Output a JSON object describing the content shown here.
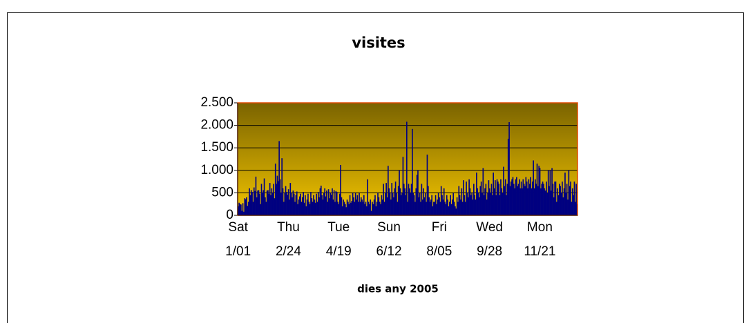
{
  "chart_data": {
    "type": "bar",
    "title": "visites",
    "x_label": "dies any 2005",
    "categories": [
      "Sat 1/01",
      null,
      null,
      null,
      null,
      null,
      null,
      null,
      null,
      null,
      null,
      null,
      null,
      null,
      null,
      null,
      null,
      null,
      null,
      null,
      null,
      null,
      null,
      null,
      null,
      null,
      null,
      null,
      null,
      null,
      null,
      null,
      null,
      null,
      null,
      null,
      null,
      null,
      null,
      null,
      null,
      null,
      null,
      null,
      null,
      null,
      null,
      null,
      null,
      null,
      null,
      null,
      null,
      null,
      "Thu 2/24",
      null,
      null,
      null,
      null,
      null,
      null,
      null,
      null,
      null,
      null,
      null,
      null,
      null,
      null,
      null,
      null,
      null,
      null,
      null,
      null,
      null,
      null,
      null,
      null,
      null,
      null,
      null,
      null,
      null,
      null,
      null,
      null,
      null,
      null,
      null,
      null,
      null,
      null,
      null,
      null,
      null,
      null,
      null,
      null,
      null,
      null,
      null,
      null,
      null,
      null,
      null,
      null,
      null,
      "Tue 4/19",
      null,
      null,
      null,
      null,
      null,
      null,
      null,
      null,
      null,
      null,
      null,
      null,
      null,
      null,
      null,
      null,
      null,
      null,
      null,
      null,
      null,
      null,
      null,
      null,
      null,
      null,
      null,
      null,
      null,
      null,
      null,
      null,
      null,
      null,
      null,
      null,
      null,
      null,
      null,
      null,
      null,
      null,
      null,
      null,
      null,
      null,
      null,
      null,
      null,
      null,
      null,
      null,
      null,
      "Sun 6/12",
      null,
      null,
      null,
      null,
      null,
      null,
      null,
      null,
      null,
      null,
      null,
      null,
      null,
      null,
      null,
      null,
      null,
      null,
      null,
      null,
      null,
      null,
      null,
      null,
      null,
      null,
      null,
      null,
      null,
      null,
      null,
      null,
      null,
      null,
      null,
      null,
      null,
      null,
      null,
      null,
      null,
      null,
      null,
      null,
      null,
      null,
      null,
      null,
      null,
      null,
      null,
      null,
      null,
      "Fri 8/05",
      null,
      null,
      null,
      null,
      null,
      null,
      null,
      null,
      null,
      null,
      null,
      null,
      null,
      null,
      null,
      null,
      null,
      null,
      null,
      null,
      null,
      null,
      null,
      null,
      null,
      null,
      null,
      null,
      null,
      null,
      null,
      null,
      null,
      null,
      null,
      null,
      null,
      null,
      null,
      null,
      null,
      null,
      null,
      null,
      null,
      null,
      null,
      null,
      null,
      null,
      null,
      null,
      null,
      "Wed 9/28",
      null,
      null,
      null,
      null,
      null,
      null,
      null,
      null,
      null,
      null,
      null,
      null,
      null,
      null,
      null,
      null,
      null,
      null,
      null,
      null,
      null,
      null,
      null,
      null,
      null,
      null,
      null,
      null,
      null,
      null,
      null,
      null,
      null,
      null,
      null,
      null,
      null,
      null,
      null,
      null,
      null,
      null,
      null,
      null,
      null,
      null,
      null,
      null,
      null,
      null,
      null,
      null,
      null,
      "Mon 11/21",
      null,
      null,
      null,
      null,
      null,
      null,
      null,
      null,
      null,
      null,
      null,
      null,
      null,
      null,
      null,
      null,
      null,
      null,
      null,
      null,
      null,
      null,
      null,
      null,
      null,
      null,
      null,
      null,
      null,
      null,
      null,
      null,
      null,
      null,
      null,
      null,
      null,
      null,
      null,
      null
    ],
    "values": [
      200,
      280,
      250,
      240,
      100,
      270,
      80,
      380,
      360,
      400,
      210,
      300,
      600,
      450,
      560,
      520,
      300,
      620,
      540,
      860,
      400,
      550,
      560,
      480,
      250,
      700,
      500,
      560,
      820,
      400,
      300,
      550,
      560,
      480,
      720,
      450,
      600,
      500,
      700,
      380,
      1150,
      700,
      880,
      760,
      1650,
      800,
      500,
      1270,
      600,
      300,
      500,
      650,
      520,
      460,
      580,
      350,
      720,
      500,
      400,
      550,
      480,
      300,
      450,
      530,
      250,
      350,
      420,
      480,
      300,
      400,
      520,
      280,
      450,
      200,
      350,
      480,
      300,
      250,
      520,
      380,
      300,
      450,
      350,
      280,
      480,
      300,
      520,
      400,
      600,
      660,
      450,
      350,
      500,
      600,
      420,
      550,
      300,
      580,
      380,
      500,
      460,
      600,
      350,
      560,
      300,
      540,
      520,
      300,
      250,
      480,
      1120,
      400,
      200,
      350,
      300,
      250,
      180,
      350,
      300,
      250,
      450,
      280,
      320,
      500,
      400,
      300,
      500,
      350,
      450,
      300,
      500,
      300,
      400,
      350,
      300,
      450,
      250,
      300,
      200,
      800,
      300,
      250,
      350,
      100,
      300,
      250,
      350,
      450,
      200,
      300,
      500,
      400,
      300,
      250,
      450,
      350,
      700,
      300,
      500,
      720,
      400,
      1100,
      600,
      500,
      350,
      720,
      500,
      400,
      600,
      750,
      500,
      300,
      650,
      1000,
      600,
      450,
      500,
      1300,
      700,
      600,
      450,
      2080,
      300,
      700,
      600,
      500,
      700,
      1920,
      500,
      450,
      300,
      600,
      900,
      1000,
      400,
      500,
      300,
      700,
      350,
      600,
      400,
      500,
      300,
      1350,
      650,
      400,
      300,
      350,
      450,
      200,
      300,
      300,
      450,
      250,
      350,
      500,
      400,
      300,
      650,
      450,
      350,
      600,
      300,
      250,
      450,
      350,
      200,
      300,
      450,
      250,
      350,
      500,
      300,
      200,
      150,
      400,
      300,
      650,
      450,
      350,
      600,
      300,
      780,
      450,
      300,
      750,
      500,
      400,
      800,
      600,
      450,
      500,
      350,
      700,
      450,
      350,
      950,
      600,
      500,
      400,
      650,
      750,
      500,
      1050,
      450,
      600,
      700,
      350,
      500,
      780,
      600,
      500,
      700,
      450,
      950,
      600,
      780,
      450,
      800,
      750,
      700,
      450,
      800,
      600,
      500,
      1080,
      650,
      800,
      450,
      700,
      1700,
      2070,
      650,
      750,
      800,
      850,
      700,
      600,
      800,
      850,
      650,
      700,
      800,
      600,
      750,
      600,
      800,
      700,
      650,
      850,
      750,
      600,
      800,
      700,
      850,
      600,
      750,
      1220,
      600,
      800,
      700,
      1150,
      650,
      1100,
      1050,
      600,
      700,
      750,
      700,
      600,
      550,
      750,
      500,
      1000,
      650,
      1000,
      550,
      1050,
      700,
      400,
      750,
      750,
      300,
      600,
      450,
      700,
      650,
      500,
      750,
      400,
      600,
      950,
      500,
      700,
      350,
      1000,
      650,
      750,
      300,
      600,
      450,
      750,
      300,
      700,
      250
    ],
    "color": "#000080",
    "ylim": [
      0,
      2500
    ],
    "yticks": [
      0,
      500,
      {
        "value": 1000,
        "label": "1.000"
      },
      {
        "value": 1500,
        "label": "1.500"
      },
      {
        "value": 2000,
        "label": "2.000"
      },
      {
        "value": 2500,
        "label": "2.500"
      }
    ],
    "grid": true
  }
}
